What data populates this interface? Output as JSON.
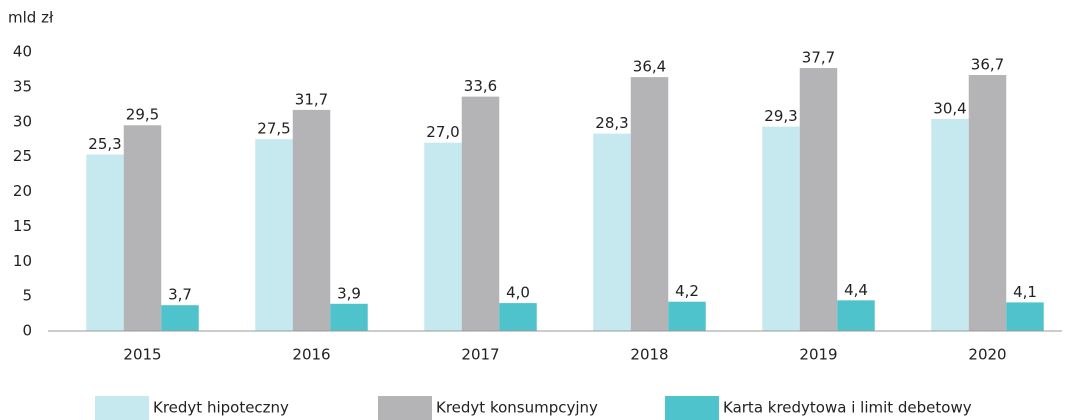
{
  "chart_data": {
    "type": "bar",
    "y_label": "mld zł",
    "categories": [
      "2015",
      "2016",
      "2017",
      "2018",
      "2019",
      "2020"
    ],
    "series": [
      {
        "name": "Kredyt hipoteczny",
        "color": "#c6e9f0",
        "values": [
          25.3,
          27.5,
          27.0,
          28.3,
          29.3,
          30.4
        ],
        "value_labels": [
          "25,3",
          "27,5",
          "27,0",
          "28,3",
          "29,3",
          "30,4"
        ]
      },
      {
        "name": "Kredyt konsumpcyjny",
        "color": "#b4b4b7",
        "values": [
          29.5,
          31.7,
          33.6,
          36.4,
          37.7,
          36.7
        ],
        "value_labels": [
          "29,5",
          "31,7",
          "33,6",
          "36,4",
          "37,7",
          "36,7"
        ]
      },
      {
        "name": "Karta kredytowa i limit debetowy",
        "color": "#4fc3cc",
        "values": [
          3.7,
          3.9,
          4.0,
          4.2,
          4.4,
          4.1
        ],
        "value_labels": [
          "3,7",
          "3,9",
          "4,0",
          "4,2",
          "4,4",
          "4,1"
        ]
      }
    ],
    "ylim": [
      0,
      40
    ],
    "yticks": [
      0,
      5,
      10,
      15,
      20,
      25,
      30,
      35,
      40
    ],
    "grid": false,
    "legend": "bottom"
  }
}
